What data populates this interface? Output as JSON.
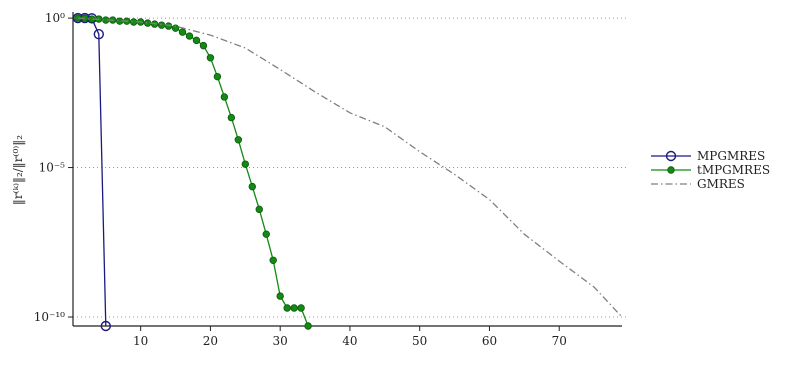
{
  "chart_data": {
    "type": "line",
    "ylabel": "‖r⁽ᵏ⁾‖₂/‖r⁽⁰⁾‖₂",
    "log_y": true,
    "grid": true,
    "legend": "right",
    "xlim": [
      0.3,
      79
    ],
    "ylim": [
      5e-11,
      1.6
    ],
    "xticks": [
      10,
      20,
      30,
      40,
      50,
      60,
      70
    ],
    "yticks": [
      {
        "value": 1,
        "label": "10⁰"
      },
      {
        "value": 1e-05,
        "label": "10⁻⁵"
      },
      {
        "value": 1e-10,
        "label": "10⁻¹⁰"
      }
    ],
    "series": [
      {
        "name": "MPGMRES",
        "color": "#1a1a80",
        "marker": "open-circle",
        "x": [
          1,
          2,
          3,
          4,
          5
        ],
        "values": [
          1,
          1,
          0.98,
          0.29,
          5e-11
        ]
      },
      {
        "name": "tMPGMRES",
        "color": "#138a13",
        "marker": "dot",
        "x": [
          1,
          2,
          3,
          4,
          5,
          6,
          7,
          8,
          9,
          10,
          11,
          12,
          13,
          14,
          15,
          16,
          17,
          18,
          19,
          20,
          21,
          22,
          23,
          24,
          25,
          26,
          27,
          28,
          29,
          30,
          31,
          32,
          33,
          34
        ],
        "values": [
          1,
          1,
          0.93,
          0.93,
          0.86,
          0.86,
          0.79,
          0.79,
          0.74,
          0.74,
          0.68,
          0.63,
          0.58,
          0.54,
          0.46,
          0.34,
          0.25,
          0.18,
          0.12,
          0.047,
          0.011,
          0.0023,
          0.00047,
          8.5e-05,
          1.3e-05,
          2.3e-06,
          4e-07,
          5.9e-08,
          7.9e-09,
          5e-10,
          2e-10,
          2e-10,
          2e-10,
          5e-11
        ]
      },
      {
        "name": "GMRES",
        "color": "#808080",
        "marker": "none",
        "dash": "dashdot",
        "x": [
          1,
          10,
          15,
          20,
          25,
          30,
          35,
          40,
          45,
          50,
          55,
          60,
          65,
          70,
          75,
          79
        ],
        "values": [
          1,
          0.74,
          0.54,
          0.27,
          0.1,
          0.019,
          0.0034,
          0.00068,
          0.00023,
          3.4e-05,
          5.9e-06,
          8.5e-07,
          5.9e-08,
          7.4e-09,
          1e-09,
          1e-10
        ]
      }
    ]
  }
}
